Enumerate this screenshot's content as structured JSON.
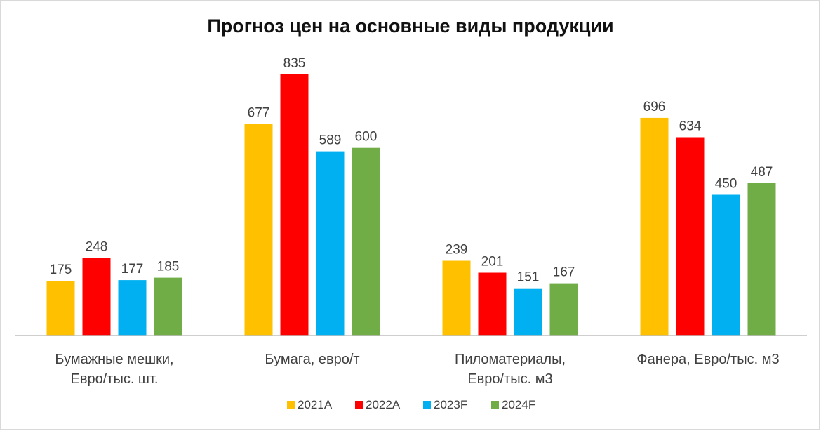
{
  "chart_data": {
    "type": "bar",
    "title": "Прогноз цен на основные виды продукции",
    "categories": [
      [
        "Бумажные мешки,",
        "Евро/тыс. шт."
      ],
      [
        "Бумага, евро/т"
      ],
      [
        "Пиломатериалы,",
        "Евро/тыс. м3"
      ],
      [
        "Фанера, Евро/тыс. м3"
      ]
    ],
    "series": [
      {
        "name": "2021A",
        "color": "#FFC000",
        "values": [
          175,
          677,
          239,
          696
        ]
      },
      {
        "name": "2022A",
        "color": "#FF0000",
        "values": [
          248,
          835,
          201,
          634
        ]
      },
      {
        "name": "2023F",
        "color": "#00B0F0",
        "values": [
          177,
          589,
          151,
          450
        ]
      },
      {
        "name": "2024F",
        "color": "#70AD47",
        "values": [
          185,
          600,
          167,
          487
        ]
      }
    ],
    "ylim": [
      0,
      835
    ],
    "grid": false,
    "legend": "bottom"
  }
}
